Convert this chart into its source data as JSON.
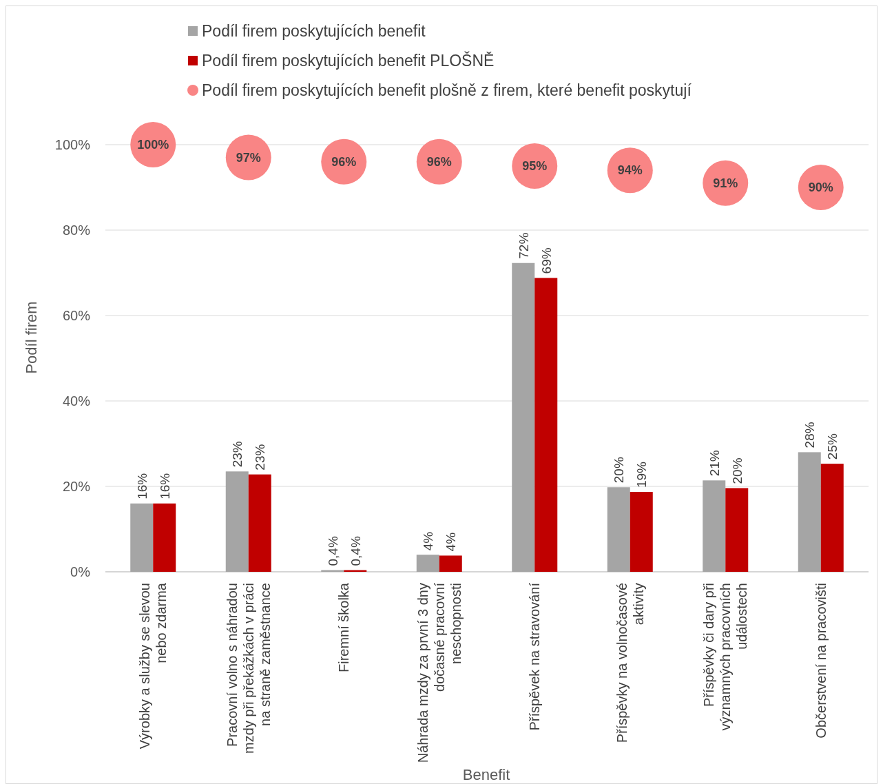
{
  "chart_data": {
    "type": "bar",
    "xlabel": "Benefit",
    "ylabel": "Podíl firem",
    "categories": [
      "Výrobky a služby se slevou nebo zdarma",
      "Pracovní volno s náhradou mzdy při překážkách v práci na straně zaměstnance",
      "Firemní školka",
      "Náhrada mzdy za první 3 dny dočasné pracovní neschopnosti",
      "Příspěvek na stravování",
      "Příspěvky na volnočasové aktivity",
      "Příspěvky či dary při významných pracovních událostech",
      "Občerstvení na pracovišti"
    ],
    "series": [
      {
        "name": "Podíl firem poskytujících benefit",
        "color": "#a5a5a5",
        "values": [
          16,
          23.5,
          0.4,
          4,
          72.3,
          19.8,
          21.4,
          28
        ],
        "value_labels": [
          "16%",
          "23%",
          "0,4%",
          "4%",
          "72%",
          "20%",
          "21%",
          "28%"
        ]
      },
      {
        "name": "Podíl firem poskytujících benefit PLOŠNĚ",
        "color": "#c00000",
        "values": [
          16,
          22.8,
          0.4,
          3.8,
          68.8,
          18.7,
          19.6,
          25.3
        ],
        "value_labels": [
          "16%",
          "23%",
          "0,4%",
          "4%",
          "69%",
          "19%",
          "20%",
          "25%"
        ]
      },
      {
        "name": "Podíl firem poskytujících benefit plošně z firem, které benefit poskytují",
        "type": "scatter",
        "color": "#f98585",
        "values": [
          100,
          97,
          96,
          96,
          95,
          94,
          91,
          90
        ],
        "value_labels": [
          "100%",
          "97%",
          "96%",
          "96%",
          "95%",
          "94%",
          "91%",
          "90%"
        ]
      }
    ],
    "ylim": [
      0,
      100
    ],
    "yticks": [
      {
        "value": 0,
        "label": "0%"
      },
      {
        "value": 20,
        "label": "20%"
      },
      {
        "value": 40,
        "label": "40%"
      },
      {
        "value": 60,
        "label": "60%"
      },
      {
        "value": 80,
        "label": "80%"
      },
      {
        "value": 100,
        "label": "100%"
      }
    ],
    "grid": "y",
    "legend": "top",
    "marker": "circle"
  }
}
